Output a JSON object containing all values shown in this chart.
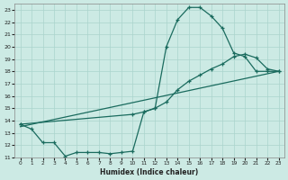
{
  "xlabel": "Humidex (Indice chaleur)",
  "bg_color": "#cceae4",
  "grid_color": "#aad4cc",
  "line_color": "#1a6b5e",
  "xlim": [
    -0.5,
    23.5
  ],
  "ylim": [
    11,
    23.5
  ],
  "xticks": [
    0,
    1,
    2,
    3,
    4,
    5,
    6,
    7,
    8,
    9,
    10,
    11,
    12,
    13,
    14,
    15,
    16,
    17,
    18,
    19,
    20,
    21,
    22,
    23
  ],
  "yticks": [
    11,
    12,
    13,
    14,
    15,
    16,
    17,
    18,
    19,
    20,
    21,
    22,
    23
  ],
  "line1_x": [
    0,
    1,
    2,
    3,
    4,
    5,
    6,
    7,
    8,
    9,
    10,
    11,
    12,
    13,
    14,
    15,
    16,
    17,
    18,
    19,
    20,
    21,
    22,
    23
  ],
  "line1_y": [
    13.7,
    13.3,
    12.2,
    12.2,
    11.1,
    11.4,
    11.4,
    11.4,
    11.3,
    11.4,
    11.5,
    14.7,
    15.0,
    20.0,
    22.2,
    23.2,
    23.2,
    22.5,
    21.5,
    19.5,
    19.2,
    18.0,
    18.0,
    18.0
  ],
  "line2_x": [
    0,
    10,
    11,
    12,
    13,
    14,
    15,
    16,
    17,
    18,
    19,
    20,
    21,
    22,
    23
  ],
  "line2_y": [
    13.7,
    14.5,
    14.7,
    15.0,
    15.5,
    16.5,
    17.2,
    17.7,
    18.2,
    18.6,
    19.2,
    19.4,
    19.1,
    18.2,
    18.0
  ],
  "line3_x": [
    0,
    23
  ],
  "line3_y": [
    13.5,
    18.0
  ]
}
